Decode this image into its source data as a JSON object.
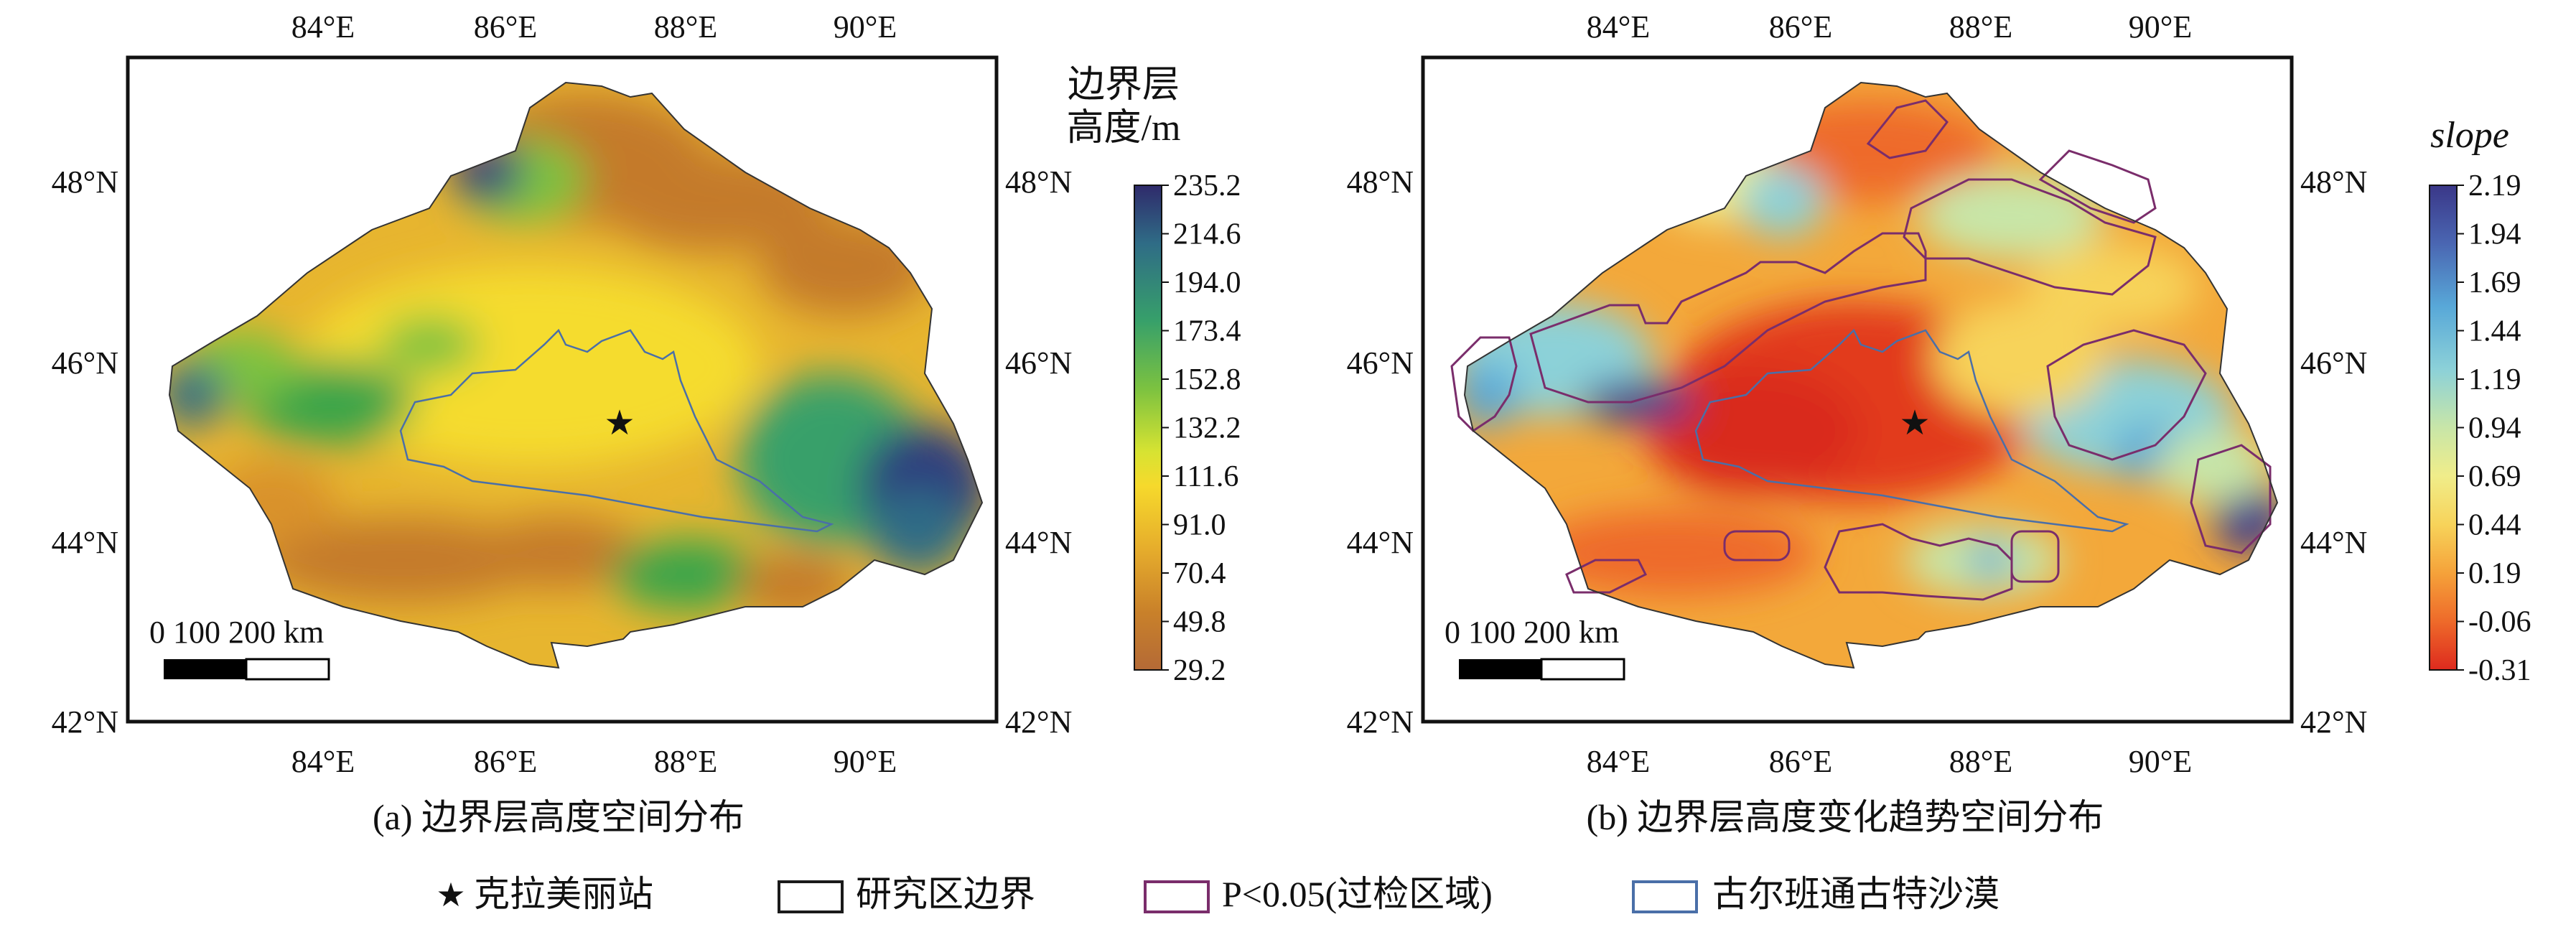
{
  "panels": [
    {
      "id": "a",
      "caption": "(a) 边界层高度空间分布",
      "colorbar": {
        "title_line1": "边界层",
        "title_line2": "高度/m",
        "labels": [
          "235.2",
          "214.6",
          "194.0",
          "173.4",
          "152.8",
          "132.2",
          "111.6",
          "91.0",
          "70.4",
          "49.8",
          "29.2"
        ],
        "colors": [
          "#2f2a6b",
          "#2f6c86",
          "#37a06a",
          "#7cc240",
          "#d7e332",
          "#f6d92c",
          "#e6ad2c",
          "#c9812a",
          "#b46a36"
        ]
      },
      "scale_bar": "0   100   200 km",
      "palette": {
        "high": "#2d3c7e",
        "mid_high": "#3aa56a",
        "mid": "#f2dd2e",
        "low": "#c47a2c"
      }
    },
    {
      "id": "b",
      "caption": "(b) 边界层高度变化趋势空间分布",
      "colorbar": {
        "title_line1": "slope",
        "title_line2": "",
        "labels": [
          "2.19",
          "1.94",
          "1.69",
          "1.44",
          "1.19",
          "0.94",
          "0.69",
          "0.44",
          "0.19",
          "-0.06",
          "-0.31"
        ],
        "colors": [
          "#3a3788",
          "#4a66b2",
          "#58a8d8",
          "#8cd1d8",
          "#c8e6a8",
          "#f0ed8a",
          "#f7d35a",
          "#f5a23a",
          "#ee6a2a",
          "#dd2a1e"
        ]
      },
      "scale_bar": "0   100   200 km",
      "palette": {
        "high": "#3b3b8f",
        "mid": "#f2cf45",
        "low": "#e23a1f"
      }
    }
  ],
  "axes": {
    "lon_labels": [
      "84°E",
      "86°E",
      "88°E",
      "90°E"
    ],
    "lat_labels": [
      "48°N",
      "46°N",
      "44°N",
      "42°N"
    ]
  },
  "legend": {
    "items": [
      {
        "label": "克拉美丽站",
        "symbol": "star"
      },
      {
        "label": "研究区边界",
        "symbol": "rect-black"
      },
      {
        "label": "P<0.05(过检区域)",
        "symbol": "rect-purple"
      },
      {
        "label": "古尔班通古特沙漠",
        "symbol": "rect-blue"
      }
    ],
    "colors": {
      "boundary": "#1a1a1a",
      "significance": "#7a2d6b",
      "desert": "#4a6fa8"
    }
  }
}
